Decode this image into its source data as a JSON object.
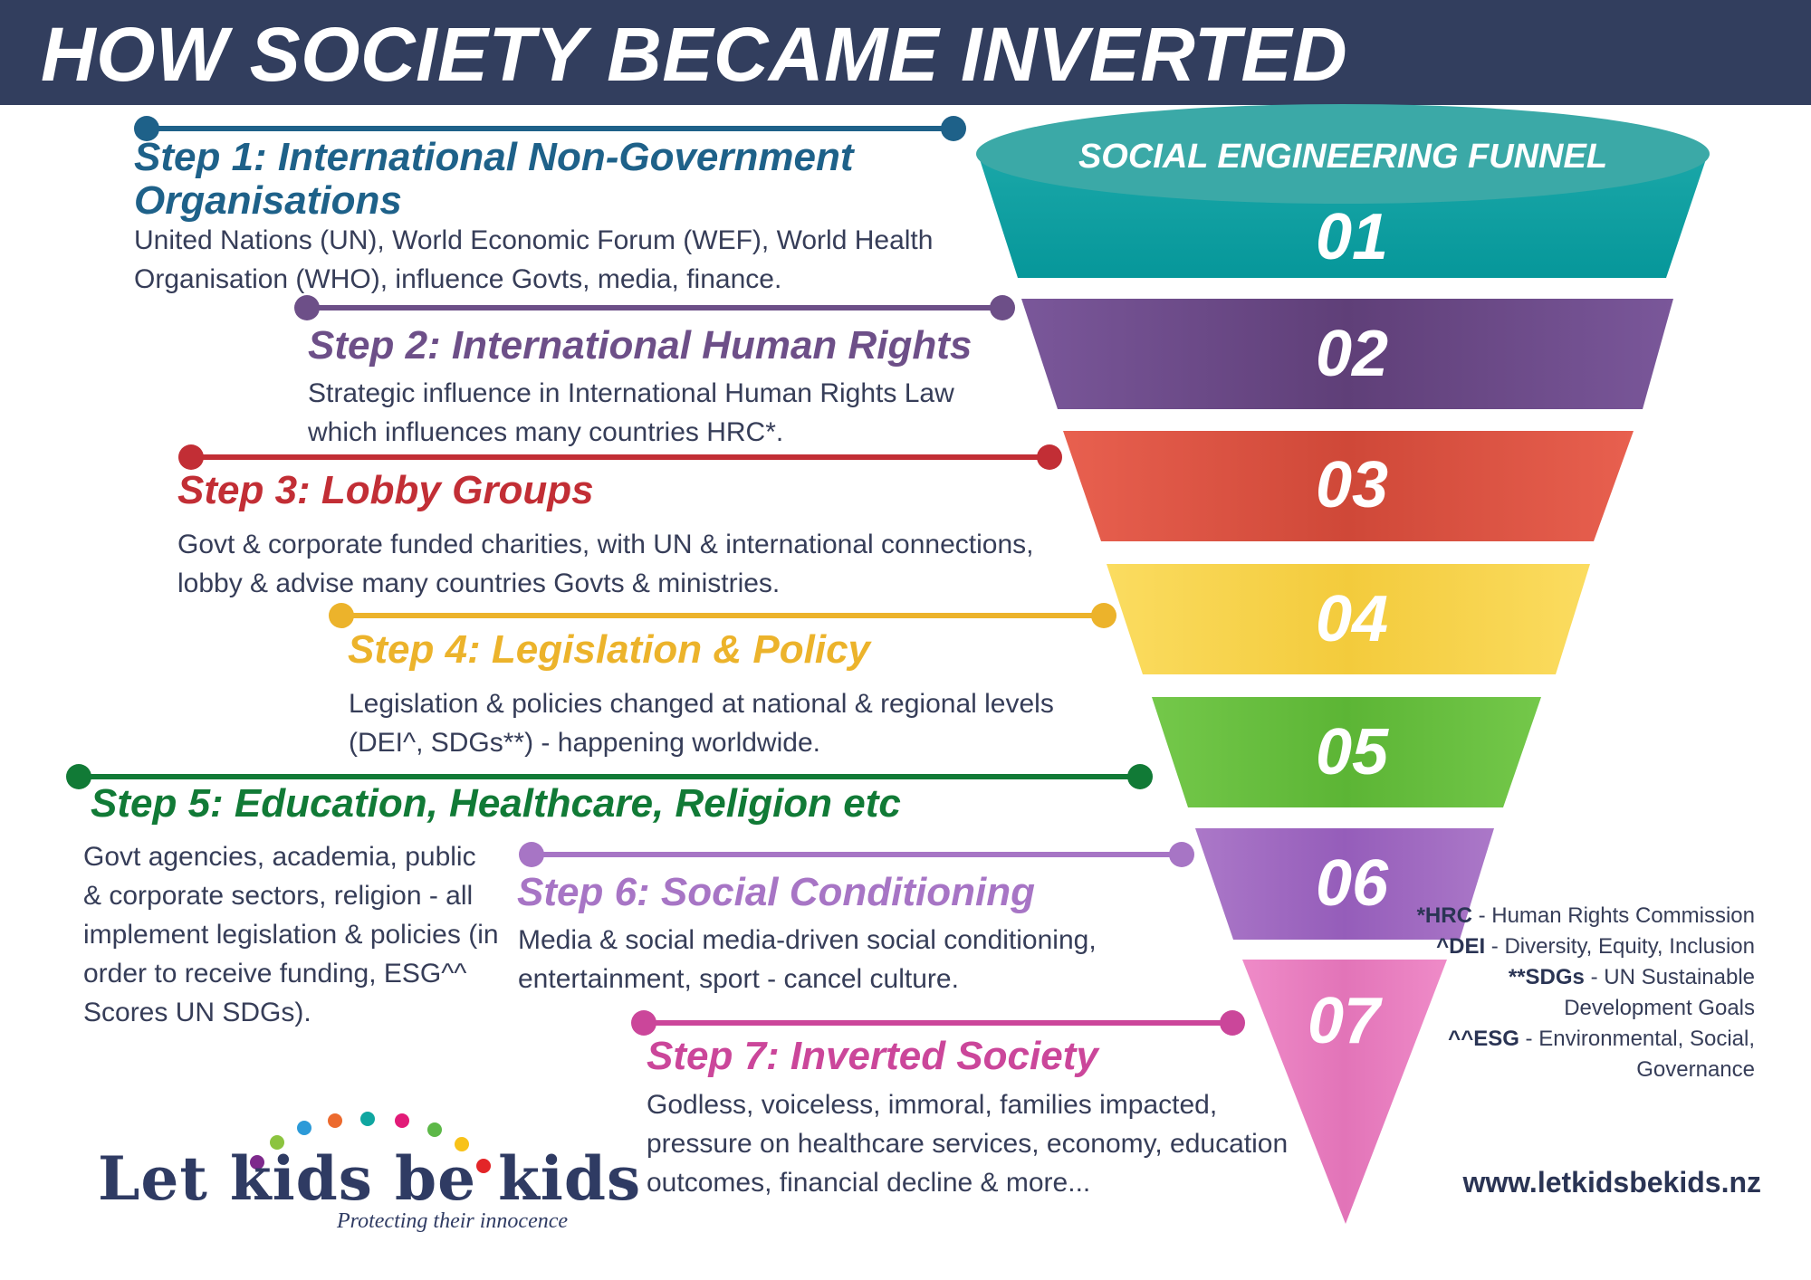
{
  "header": {
    "title": "HOW SOCIETY BECAME INVERTED"
  },
  "funnel": {
    "label": "SOCIAL ENGINEERING FUNNEL",
    "numbers": [
      "01",
      "02",
      "03",
      "04",
      "05",
      "06",
      "07"
    ]
  },
  "colors": {
    "header_bg": "#323e5e",
    "step1": "#1e6189",
    "step2": "#6d4f88",
    "step3": "#c22e35",
    "step4": "#ecb32b",
    "step5": "#117a36",
    "step6": "#a775c5",
    "step7": "#cb469a",
    "text": "#363d58",
    "funnel1": "#07a1a3",
    "funnel2": "#6d4a84",
    "funnel3": "#e0584a",
    "funnel4": "#f8d655",
    "funnel5": "#6cc441",
    "funnel6": "#a26cc2",
    "funnel7": "#ea82c2"
  },
  "steps": [
    {
      "title": "Step 1: International Non-Government Organisations",
      "description": "United Nations (UN), World Economic Forum (WEF), World Health Organisation (WHO), influence Govts, media, finance."
    },
    {
      "title": "Step 2: International Human Rights",
      "description": "Strategic influence in International Human Rights Law which influences many countries HRC*."
    },
    {
      "title": "Step 3: Lobby Groups",
      "description": "Govt & corporate funded charities, with UN & international connections, lobby & advise many countries Govts & ministries."
    },
    {
      "title": "Step 4: Legislation & Policy",
      "description": "Legislation & policies changed at national & regional levels (DEI^, SDGs**) - happening worldwide."
    },
    {
      "title": "Step 5: Education, Healthcare, Religion etc",
      "description": "Govt agencies, academia, public & corporate sectors, religion - all implement legislation & policies (in order to receive funding, ESG^^ Scores UN SDGs)."
    },
    {
      "title": "Step 6: Social Conditioning",
      "description": "Media & social media-driven social conditioning, entertainment, sport - cancel culture."
    },
    {
      "title": "Step 7: Inverted Society",
      "description": "Godless, voiceless, immoral, families impacted, pressure on healthcare services, economy, education outcomes, financial decline & more..."
    }
  ],
  "glossary": [
    {
      "term": "*HRC",
      "definition": " - Human Rights Commission"
    },
    {
      "term": "^DEI",
      "definition": " - Diversity, Equity, Inclusion"
    },
    {
      "term": "**SDGs",
      "definition": " - UN Sustainable Development Goals"
    },
    {
      "term": "^^ESG",
      "definition": " - Environmental, Social, Governance"
    }
  ],
  "website": "www.letkidsbekids.nz",
  "logo": {
    "name": "Let kids be kids",
    "tagline": "Protecting their innocence"
  }
}
